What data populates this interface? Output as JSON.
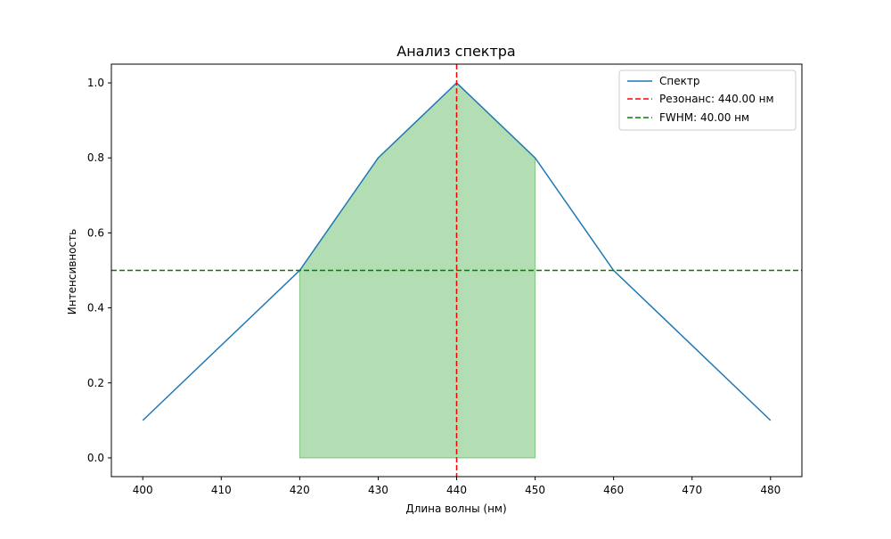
{
  "chart_data": {
    "type": "line",
    "title": "Анализ спектра",
    "xlabel": "Длина волны (нм)",
    "ylabel": "Интенсивность",
    "xlim": [
      396,
      484
    ],
    "ylim": [
      -0.05,
      1.05
    ],
    "xticks": [
      400,
      410,
      420,
      430,
      440,
      450,
      460,
      470,
      480
    ],
    "yticks": [
      0.0,
      0.2,
      0.4,
      0.6,
      0.8,
      1.0
    ],
    "grid": false,
    "legend_position": "top-right",
    "series": [
      {
        "name": "Спектр",
        "color": "#1f77b4",
        "x": [
          400,
          420,
          430,
          440,
          450,
          460,
          480
        ],
        "y": [
          0.1,
          0.5,
          0.8,
          1.0,
          0.8,
          0.5,
          0.1
        ]
      }
    ],
    "fill_region": {
      "color": "#2ca02c",
      "opacity": 0.36,
      "x": [
        420,
        430,
        440,
        450
      ],
      "y": [
        0.5,
        0.8,
        1.0,
        0.8
      ]
    },
    "vline": {
      "label": "Резонанс: 440.00 нм",
      "x": 440,
      "color": "#ff0000"
    },
    "hline": {
      "label": "FWHM: 40.00 нм",
      "y": 0.5,
      "color": "#008000"
    }
  }
}
